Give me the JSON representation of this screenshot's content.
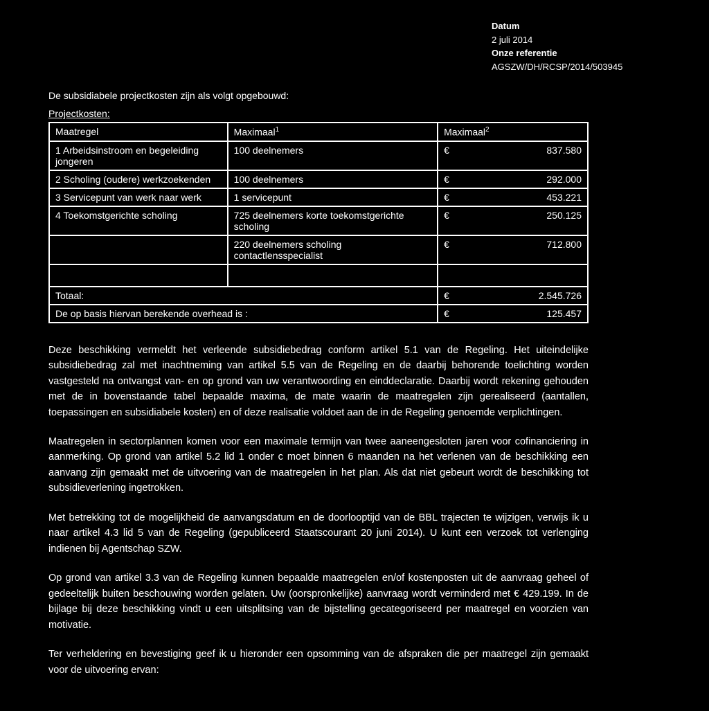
{
  "header": {
    "date_label": "Datum",
    "date_value": "2 juli 2014",
    "ref_label": "Onze referentie",
    "ref_value": "AGSZW/DH/RCSP/2014/503945"
  },
  "intro_line": "De subsidiabele projectkosten zijn als volgt opgebouwd:",
  "table": {
    "title": "Projectkosten:",
    "columns": {
      "c1": "Maatregel",
      "c2_html": "Maximaal",
      "c2_sup": "1",
      "c3_html": "Maximaal",
      "c3_sup": "2"
    },
    "rows": [
      {
        "maatregel": "1 Arbeidsinstroom en begeleiding jongeren",
        "max1": "100 deelnemers",
        "amount": "837.580"
      },
      {
        "maatregel": "2 Scholing (oudere) werkzoekenden",
        "max1": "100 deelnemers",
        "amount": "292.000"
      },
      {
        "maatregel": "3 Servicepunt van werk naar werk",
        "max1": "1 servicepunt",
        "amount": "453.221"
      },
      {
        "maatregel": "4 Toekomstgerichte scholing",
        "max1": "725 deelnemers korte toekomstgerichte scholing",
        "amount": "250.125"
      },
      {
        "maatregel": "",
        "max1": "220 deelnemers scholing contactlensspecialist",
        "amount": "712.800"
      }
    ],
    "total_label": "Totaal:",
    "total_amount": "2.545.726",
    "overhead_label": "De op basis hiervan berekende overhead is :",
    "overhead_amount": "125.457",
    "currency": "€"
  },
  "paragraphs": {
    "p1": "Deze beschikking vermeldt het verleende subsidiebedrag conform artikel 5.1 van de Regeling. Het uiteindelijke subsidiebedrag zal met inachtneming van artikel 5.5 van de Regeling en de daarbij behorende toelichting worden vastgesteld na ontvangst van- en op grond van uw verantwoording en einddeclaratie. Daarbij wordt rekening gehouden met de in bovenstaande tabel bepaalde maxima, de mate waarin de maatregelen zijn gerealiseerd (aantallen, toepassingen en subsidiabele kosten) en of deze realisatie voldoet aan de in de Regeling genoemde verplichtingen.",
    "p2": "Maatregelen in sectorplannen komen voor een maximale termijn van twee aaneengesloten jaren voor cofinanciering in aanmerking. Op grond van artikel 5.2 lid 1 onder c moet binnen 6 maanden na het verlenen van de beschikking een aanvang zijn gemaakt met de uitvoering van de maatregelen in het plan. Als dat niet gebeurt wordt de beschikking tot subsidieverlening ingetrokken.",
    "p3": "Met betrekking tot de mogelijkheid de aanvangsdatum en de doorlooptijd van de BBL trajecten te wijzigen, verwijs ik u naar artikel 4.3 lid 5 van de Regeling (gepubliceerd Staatscourant 20 juni 2014). U kunt een verzoek tot verlenging indienen bij Agentschap SZW.",
    "p4": "Op grond van artikel 3.3 van de Regeling kunnen bepaalde maatregelen en/of kostenposten uit de aanvraag geheel of gedeeltelijk buiten beschouwing worden gelaten. Uw (oorspronkelijke) aanvraag wordt verminderd met € 429.199. In de bijlage bij deze beschikking vindt u een uitsplitsing van de bijstelling gecategoriseerd per maatregel en voorzien van motivatie.",
    "p5": "Ter verheldering en bevestiging geef ik u hieronder een opsomming van de afspraken die per maatregel zijn gemaakt voor de uitvoering ervan:"
  }
}
